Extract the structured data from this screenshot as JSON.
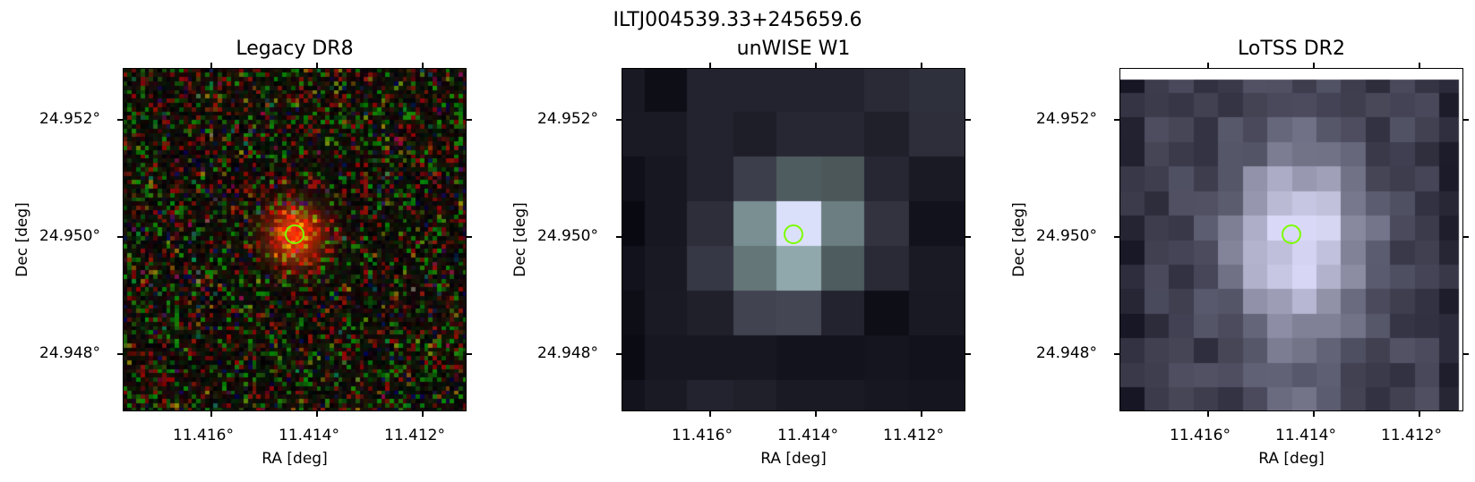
{
  "figure": {
    "title": "ILTJ004539.33+245659.6"
  },
  "panels": [
    {
      "id": "legacy",
      "title": "Legacy DR8",
      "xlabel": "RA [deg]",
      "ylabel": "Dec [deg]",
      "xticks": [
        "11.416°",
        "11.414°",
        "11.412°"
      ],
      "yticks": [
        "24.952°",
        "24.950°",
        "24.948°"
      ]
    },
    {
      "id": "unwise",
      "title": "unWISE W1",
      "xlabel": "RA [deg]",
      "ylabel": "Dec [deg]",
      "xticks": [
        "11.416°",
        "11.414°",
        "11.412°"
      ],
      "yticks": [
        "24.952°",
        "24.950°",
        "24.948°"
      ]
    },
    {
      "id": "lotss",
      "title": "LoTSS DR2",
      "xlabel": "RA [deg]",
      "ylabel": "Dec [deg]",
      "xticks": [
        "11.416°",
        "11.414°",
        "11.412°"
      ],
      "yticks": [
        "24.952°",
        "24.950°",
        "24.948°"
      ]
    }
  ],
  "colors": {
    "marker": "#7cfc00"
  }
}
